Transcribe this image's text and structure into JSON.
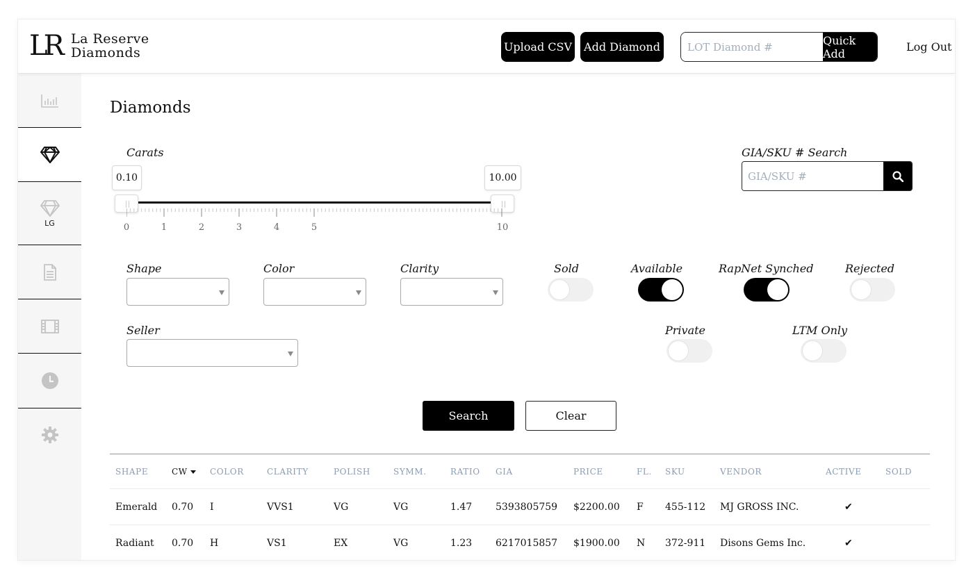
{
  "header": {
    "logo_mark": "LR",
    "logo_line1": "La Reserve",
    "logo_line2": "Diamonds",
    "upload_csv_label": "Upload CSV",
    "add_diamond_label": "Add Diamond",
    "lot_placeholder": "LOT Diamond #",
    "lot_value": "",
    "quick_add_label": "Quick Add",
    "logout_label": "Log Out"
  },
  "sidebar": {
    "items": [
      {
        "icon": "bar-chart-icon",
        "label": "",
        "active": false
      },
      {
        "icon": "diamond-icon",
        "label": "",
        "active": true
      },
      {
        "icon": "lab-grown-diamond-icon",
        "label": "LG",
        "active": false
      },
      {
        "icon": "document-icon",
        "label": "",
        "active": false
      },
      {
        "icon": "film-icon",
        "label": "",
        "active": false
      },
      {
        "icon": "clock-icon",
        "label": "",
        "active": false
      },
      {
        "icon": "gear-icon",
        "label": "",
        "active": false
      }
    ]
  },
  "page": {
    "title": "Diamonds"
  },
  "filters": {
    "carats_label": "Carats",
    "carat_min": "0.10",
    "carat_max": "10.00",
    "carat_ticks": [
      "0",
      "1",
      "2",
      "3",
      "4",
      "5",
      "10"
    ],
    "gia_label": "GIA/SKU # Search",
    "gia_placeholder": "GIA/SKU #",
    "shape_label": "Shape",
    "color_label": "Color",
    "clarity_label": "Clarity",
    "seller_label": "Seller",
    "sold_label": "Sold",
    "available_label": "Available",
    "rapnet_label": "RapNet Synched",
    "rejected_label": "Rejected",
    "private_label": "Private",
    "ltm_label": "LTM Only",
    "toggles": {
      "sold": false,
      "available": true,
      "rapnet": true,
      "rejected": false,
      "private": false,
      "ltm": false
    },
    "search_label": "Search",
    "clear_label": "Clear"
  },
  "table": {
    "headers": [
      "SHAPE",
      "CW",
      "COLOR",
      "CLARITY",
      "POLISH",
      "SYMM.",
      "RATIO",
      "GIA",
      "PRICE",
      "FL.",
      "SKU",
      "VENDOR",
      "ACTIVE",
      "SOLD"
    ],
    "rows": [
      {
        "shape": "Emerald",
        "cw": "0.70",
        "color": "I",
        "clarity": "VVS1",
        "polish": "VG",
        "symm": "VG",
        "ratio": "1.47",
        "gia": "5393805759",
        "price": "$2200.00",
        "fl": "F",
        "sku": "455-112",
        "vendor": "MJ GROSS INC.",
        "active": "✔",
        "sold": ""
      },
      {
        "shape": "Radiant",
        "cw": "0.70",
        "color": "H",
        "clarity": "VS1",
        "polish": "EX",
        "symm": "VG",
        "ratio": "1.23",
        "gia": "6217015857",
        "price": "$1900.00",
        "fl": "N",
        "sku": "372-911",
        "vendor": "Disons Gems Inc.",
        "active": "✔",
        "sold": ""
      }
    ]
  }
}
